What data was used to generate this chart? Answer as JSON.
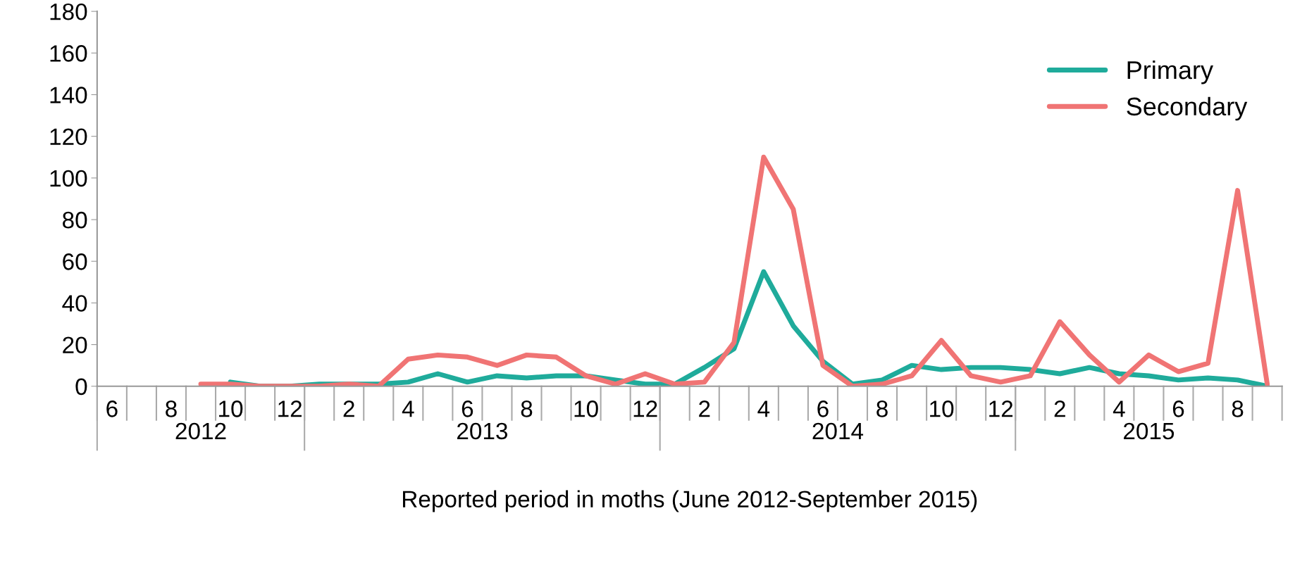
{
  "chart_data": {
    "type": "line",
    "xlabel": "Reported period in moths (June 2012-September 2015)",
    "categories": [
      "6",
      null,
      "8",
      null,
      "10",
      null,
      "12",
      null,
      "2",
      null,
      "4",
      null,
      "6",
      null,
      "8",
      null,
      "10",
      null,
      "12",
      null,
      "2",
      null,
      "4",
      null,
      "6",
      null,
      "8",
      null,
      "10",
      null,
      "12",
      null,
      "2",
      null,
      "4",
      null,
      "6",
      null,
      "8",
      null
    ],
    "series": [
      {
        "name": "Primary",
        "color": "#1fab9b",
        "values": [
          null,
          null,
          null,
          null,
          2,
          0,
          0,
          1,
          1,
          1,
          2,
          6,
          2,
          5,
          4,
          5,
          5,
          3,
          1,
          1,
          9,
          18,
          55,
          29,
          12,
          1,
          3,
          10,
          8,
          9,
          9,
          8,
          6,
          9,
          6,
          5,
          3,
          4,
          3,
          0
        ]
      },
      {
        "name": "Secondary",
        "color": "#f07474",
        "values": [
          null,
          null,
          null,
          1,
          1,
          0,
          0,
          0,
          1,
          0,
          13,
          15,
          14,
          10,
          15,
          14,
          5,
          1,
          6,
          1,
          2,
          21,
          110,
          85,
          10,
          0,
          1,
          5,
          22,
          5,
          2,
          5,
          31,
          15,
          2,
          15,
          7,
          11,
          94,
          1
        ]
      }
    ],
    "ylim": [
      0,
      180
    ],
    "yticks": [
      0,
      20,
      40,
      60,
      80,
      100,
      120,
      140,
      160,
      180
    ],
    "annotations": [
      "2012",
      "2013",
      "2014",
      "2015"
    ],
    "legend": "top right",
    "grid": false,
    "marker": "none",
    "line_style": "solid"
  }
}
